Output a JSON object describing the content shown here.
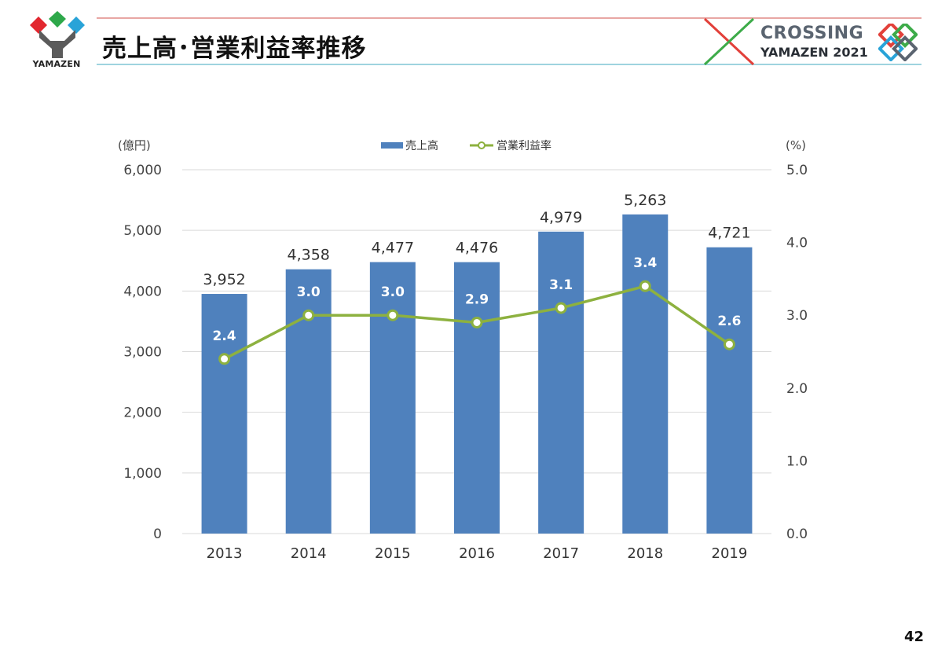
{
  "header": {
    "logo_text": "YAMAZEN",
    "title": "売上高･営業利益率推移",
    "brand_line1": "CROSSING",
    "brand_line2": "YAMAZEN 2021"
  },
  "colors": {
    "bar": "#4f81bd",
    "line": "#8db13f",
    "grid": "#d9d9d9",
    "logo_red": "#e2272f",
    "logo_green": "#2ea84a",
    "logo_blue": "#29a3d8",
    "deco_red": "#e2403a",
    "deco_green": "#3dab49"
  },
  "page_number": "42",
  "chart_data": {
    "type": "bar",
    "categories": [
      "2013",
      "2014",
      "2015",
      "2016",
      "2017",
      "2018",
      "2019"
    ],
    "left_axis_unit": "(億円)",
    "right_axis_unit": "(%)",
    "left_ylim": [
      0,
      6000
    ],
    "left_ticks": [
      "6,000",
      "5,000",
      "4,000",
      "3,000",
      "2,000",
      "1,000",
      "0"
    ],
    "left_tick_values": [
      6000,
      5000,
      4000,
      3000,
      2000,
      1000,
      0
    ],
    "right_ylim": [
      0,
      5
    ],
    "right_ticks": [
      "5.0",
      "4.0",
      "3.0",
      "2.0",
      "1.0",
      "0.0"
    ],
    "right_tick_values": [
      5,
      4,
      3,
      2,
      1,
      0
    ],
    "grid": true,
    "legend_position": "top-center",
    "series": [
      {
        "name": "売上高",
        "type": "bar",
        "axis": "left",
        "values": [
          3952,
          4358,
          4477,
          4476,
          4979,
          5263,
          4721
        ],
        "labels": [
          "3,952",
          "4,358",
          "4,477",
          "4,476",
          "4,979",
          "5,263",
          "4,721"
        ]
      },
      {
        "name": "営業利益率",
        "type": "line",
        "axis": "right",
        "values": [
          2.4,
          3.0,
          3.0,
          2.9,
          3.1,
          3.4,
          2.6
        ],
        "labels": [
          "2.4",
          "3.0",
          "3.0",
          "2.9",
          "3.1",
          "3.4",
          "2.6"
        ]
      }
    ]
  }
}
